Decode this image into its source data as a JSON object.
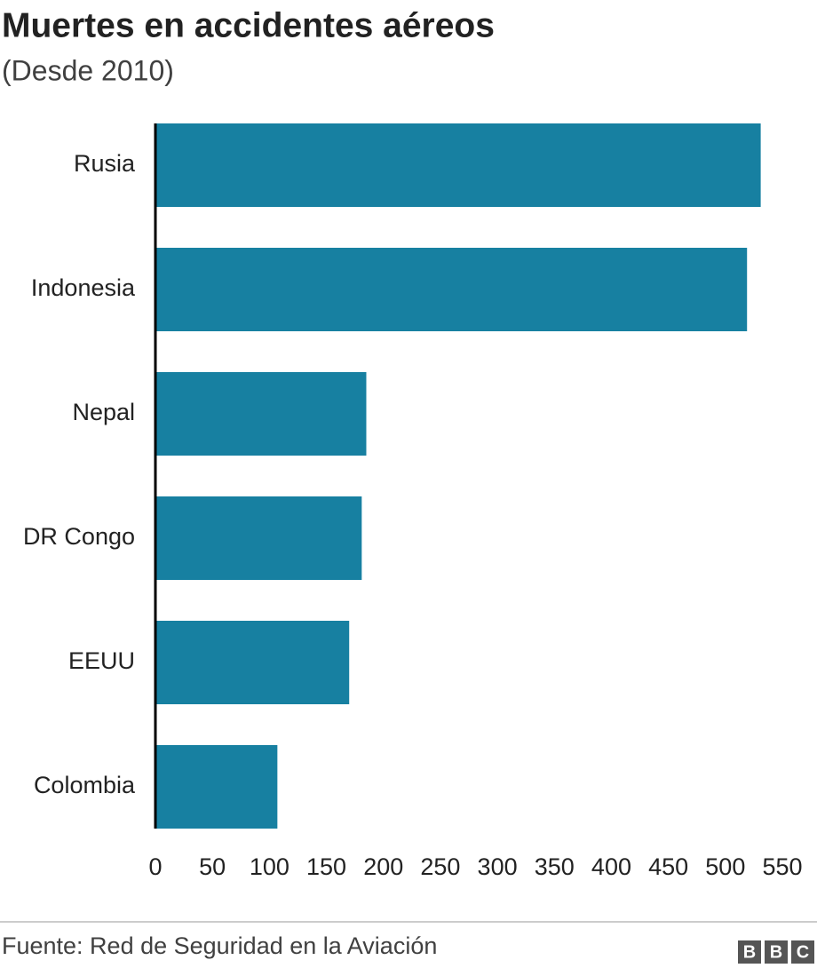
{
  "chart_data": {
    "type": "hbar",
    "title": "Muertes en accidentes aéreos",
    "subtitle": "(Desde 2010)",
    "categories": [
      "Rusia",
      "Indonesia",
      "Nepal",
      "DR Congo",
      "EEUU",
      "Colombia"
    ],
    "values": [
      531,
      519,
      185,
      181,
      170,
      107
    ],
    "color": "#1780a1",
    "xlim": [
      0,
      550
    ],
    "xticks": [
      0,
      50,
      100,
      150,
      200,
      250,
      300,
      350,
      400,
      450,
      500,
      550
    ],
    "grid": false,
    "source": "Fuente: Red de Seguridad en la Aviación",
    "logo": [
      "B",
      "B",
      "C"
    ]
  }
}
